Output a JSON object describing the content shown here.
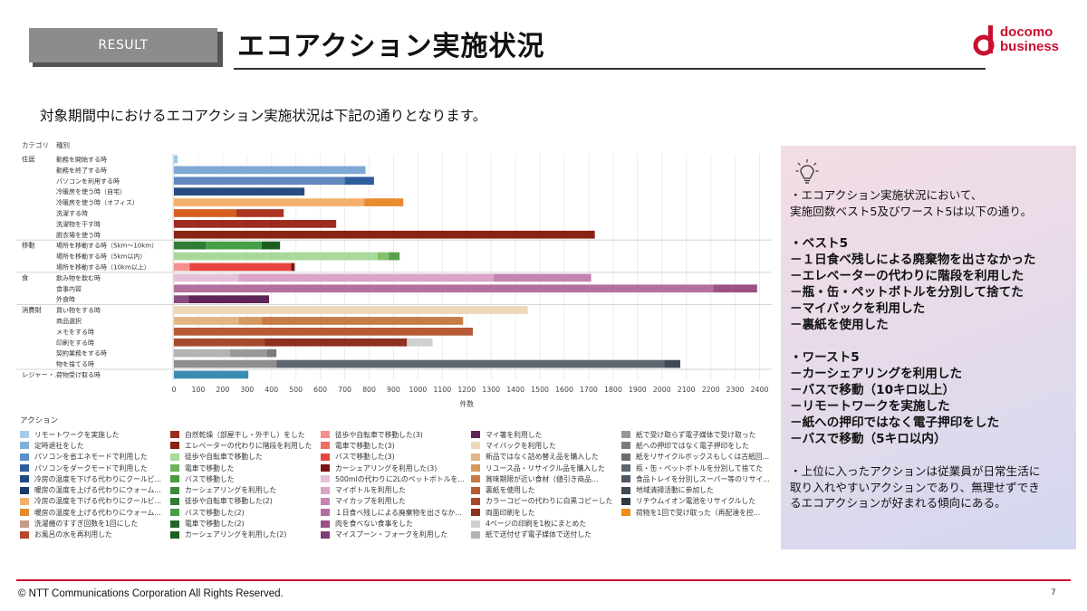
{
  "header": {
    "tab_label": "RESULT",
    "title": "エコアクション実施状況",
    "logo_line1": "docomo",
    "logo_line2": "business"
  },
  "subtitle": "対象期間中におけるエコアクション実施状況は下記の通りとなります。",
  "chart_data": {
    "type": "bar",
    "orientation": "horizontal",
    "stacked": true,
    "column_headers": [
      "カテゴリ",
      "種別"
    ],
    "xlabel": "件数",
    "xlim": [
      0,
      2450
    ],
    "xticks": [
      0,
      100,
      200,
      300,
      400,
      500,
      600,
      700,
      800,
      900,
      1000,
      1100,
      1200,
      1300,
      1400,
      1500,
      1600,
      1700,
      1800,
      1900,
      2000,
      2100,
      2200,
      2300,
      2400
    ],
    "groups": [
      {
        "label": "住居",
        "rows": [
          {
            "label": "勤務を開始する時",
            "segments": [
              {
                "color": "#9ecae1",
                "value": 15
              }
            ]
          },
          {
            "label": "勤務を終了する時",
            "segments": [
              {
                "color": "#7fa8d6",
                "value": 785
              }
            ]
          },
          {
            "label": "パソコンを利用する時",
            "segments": [
              {
                "color": "#5f88bd",
                "value": 700
              },
              {
                "color": "#2f5e9c",
                "value": 120
              }
            ]
          },
          {
            "label": "冷暖房を使う時（自宅）",
            "segments": [
              {
                "color": "#274c84",
                "value": 535
              }
            ]
          },
          {
            "label": "冷暖房を使う時（オフィス）",
            "segments": [
              {
                "color": "#f4b06b",
                "value": 780
              },
              {
                "color": "#e88a2d",
                "value": 160
              }
            ]
          },
          {
            "label": "洗濯する時",
            "segments": [
              {
                "color": "#d75f1e",
                "value": 255
              },
              {
                "color": "#ad3622",
                "value": 195
              }
            ]
          },
          {
            "label": "洗濯物を干す時",
            "segments": [
              {
                "color": "#9e2b1f",
                "value": 665
              }
            ]
          },
          {
            "label": "脱衣場を使う時",
            "segments": [
              {
                "color": "#8a2314",
                "value": 1725
              }
            ]
          }
        ]
      },
      {
        "label": "移動",
        "rows": [
          {
            "label": "場所を移動する時（5km～10km）",
            "segments": [
              {
                "color": "#2e7d32",
                "value": 130
              },
              {
                "color": "#43a047",
                "value": 230
              },
              {
                "color": "#1b5e20",
                "value": 75
              }
            ]
          },
          {
            "label": "場所を移動する時（5km以内）",
            "segments": [
              {
                "color": "#a8d99a",
                "value": 835
              },
              {
                "color": "#86c06f",
                "value": 45
              },
              {
                "color": "#5aa04d",
                "value": 45
              }
            ]
          },
          {
            "label": "場所を移動する時（10km以上）",
            "segments": [
              {
                "color": "#f7908d",
                "value": 65
              },
              {
                "color": "#e8443f",
                "value": 415
              },
              {
                "color": "#7a1212",
                "value": 15
              }
            ]
          }
        ]
      },
      {
        "label": "食",
        "rows": [
          {
            "label": "飲み物を飲む時",
            "segments": [
              {
                "color": "#e6c0d8",
                "value": 265
              },
              {
                "color": "#d9a4c6",
                "value": 1045
              },
              {
                "color": "#c583b4",
                "value": 400
              }
            ]
          },
          {
            "label": "食事内容",
            "segments": [
              {
                "color": "#b46f9f",
                "value": 2210
              },
              {
                "color": "#9a5186",
                "value": 180
              }
            ]
          },
          {
            "label": "外食時",
            "segments": [
              {
                "color": "#8a4a7f",
                "value": 60
              },
              {
                "color": "#5f2456",
                "value": 330
              }
            ]
          }
        ]
      },
      {
        "label": "消費財",
        "rows": [
          {
            "label": "買い物をする時",
            "segments": [
              {
                "color": "#ecd7b8",
                "value": 1450
              }
            ]
          },
          {
            "label": "商品選択",
            "segments": [
              {
                "color": "#e2b584",
                "value": 265
              },
              {
                "color": "#d49a60",
                "value": 95
              },
              {
                "color": "#c77b45",
                "value": 825
              }
            ]
          },
          {
            "label": "メモをする時",
            "segments": [
              {
                "color": "#b75a35",
                "value": 1225
              }
            ]
          },
          {
            "label": "印刷をする時",
            "segments": [
              {
                "color": "#a44a2c",
                "value": 370
              },
              {
                "color": "#8e2f20",
                "value": 585
              },
              {
                "color": "#d0d0d0",
                "value": 105
              }
            ]
          },
          {
            "label": "契約業務をする時",
            "segments": [
              {
                "color": "#b3b3b3",
                "value": 230
              },
              {
                "color": "#999999",
                "value": 150
              },
              {
                "color": "#7c7c7c",
                "value": 40
              }
            ]
          },
          {
            "label": "物を捨てる時",
            "segments": [
              {
                "color": "#8e8e8e",
                "value": 420
              },
              {
                "color": "#5e6770",
                "value": 1590
              },
              {
                "color": "#3f4a55",
                "value": 65
              }
            ]
          }
        ]
      },
      {
        "label": "レジャー・...",
        "rows": [
          {
            "label": "荷物受け取る時",
            "segments": [
              {
                "color": "#3a8db0",
                "value": 305
              }
            ]
          }
        ]
      }
    ],
    "legend_title": "アクション",
    "legend": [
      {
        "label": "リモートワークを実施した",
        "color": "#a6cde8"
      },
      {
        "label": "定時退社をした",
        "color": "#7fb0dc"
      },
      {
        "label": "パソコンを省エネモードで利用した",
        "color": "#5a8fcb"
      },
      {
        "label": "パソコンをダークモードで利用した",
        "color": "#2e5d9c"
      },
      {
        "label": "冷房の温度を下げる代わりにクールビ...",
        "color": "#224a7f"
      },
      {
        "label": "暖房の温度を上げる代わりにウォーム...",
        "color": "#1a3a6a"
      },
      {
        "label": "冷房の温度を下げる代わりにクールビ...",
        "color": "#f4b06b"
      },
      {
        "label": "暖房の温度を上げる代わりにウォーム...",
        "color": "#e88a2d"
      },
      {
        "label": "洗濯機のすすぎ回数を1回にした",
        "color": "#c49a84"
      },
      {
        "label": "お風呂の水を再利用した",
        "color": "#b5482a"
      },
      {
        "label": "自然乾燥（部屋干し・外干し）をした",
        "color": "#9e2b1f"
      },
      {
        "label": "エレベーターの代わりに階段を利用した",
        "color": "#8a2314"
      },
      {
        "label": "徒歩や自転車で移動した",
        "color": "#a8d99a"
      },
      {
        "label": "電車で移動した",
        "color": "#6cb35a"
      },
      {
        "label": "バスで移動した",
        "color": "#4c9a3f"
      },
      {
        "label": "カーシェアリングを利用した",
        "color": "#3a8a3a"
      },
      {
        "label": "徒歩や自転車で移動した(2)",
        "color": "#2e7d32"
      },
      {
        "label": "バスで移動した(2)",
        "color": "#43a047"
      },
      {
        "label": "電車で移動した(2)",
        "color": "#25662a"
      },
      {
        "label": "カーシェアリングを利用した(2)",
        "color": "#1b5e20"
      },
      {
        "label": "徒歩や自転車で移動した(3)",
        "color": "#f7908d"
      },
      {
        "label": "電車で移動した(3)",
        "color": "#ef6b63"
      },
      {
        "label": "バスで移動した(3)",
        "color": "#e8443f"
      },
      {
        "label": "カーシェアリングを利用した(3)",
        "color": "#7a1212"
      },
      {
        "label": "500mlの代わりに2Lのペットボトルを...",
        "color": "#e6c0d8"
      },
      {
        "label": "マイボトルを利用した",
        "color": "#d9a4c6"
      },
      {
        "label": "マイカップを利用した",
        "color": "#c583b4"
      },
      {
        "label": "１日食べ残しによる廃棄物を出さなか...",
        "color": "#b46f9f"
      },
      {
        "label": "肉を食べない食事をした",
        "color": "#9a5186"
      },
      {
        "label": "マイスプーン・フォークを利用した",
        "color": "#7d3c73"
      },
      {
        "label": "マイ箸を利用した",
        "color": "#5f2456"
      },
      {
        "label": "マイバックを利用した",
        "color": "#ecd7b8"
      },
      {
        "label": "新品ではなく詰め替え品を購入した",
        "color": "#e2b584"
      },
      {
        "label": "リユース品・リサイクル品を購入した",
        "color": "#d49a60"
      },
      {
        "label": "賞味期限が近い食材（値引き商品...",
        "color": "#c77b45"
      },
      {
        "label": "裏紙を使用した",
        "color": "#b75a35"
      },
      {
        "label": "カラーコピーの代わりに白黒コピーした",
        "color": "#a44a2c"
      },
      {
        "label": "両面印刷をした",
        "color": "#8e2f20"
      },
      {
        "label": "4ページの印刷を1枚にまとめた",
        "color": "#d0d0d0"
      },
      {
        "label": "紙で送付せず電子媒体で送付した",
        "color": "#b3b3b3"
      },
      {
        "label": "紙で受け取らず電子媒体で受け取った",
        "color": "#999999"
      },
      {
        "label": "紙への押印ではなく電子押印をした",
        "color": "#7c7c7c"
      },
      {
        "label": "紙をリサイクルボックスもしくは古紙回...",
        "color": "#6d6d6d"
      },
      {
        "label": "瓶・缶・ペットボトルを分別して捨てた",
        "color": "#5e6770"
      },
      {
        "label": "食品トレイを分別しスーパー等のリサイ...",
        "color": "#4e5862"
      },
      {
        "label": "地域清掃活動に参加した",
        "color": "#3f4a55"
      },
      {
        "label": "リチウムイオン電池をリサイクルした",
        "color": "#2f3945"
      },
      {
        "label": "荷物を1回で受け取った（再配達を控...",
        "color": "#f08c1e"
      }
    ]
  },
  "note": {
    "intro_line1": "・エコアクション実施状況において、",
    "intro_line2": "実施回数ベスト5及びワースト5は以下の通り。",
    "best_title": "・ベスト5",
    "best_items": [
      "－１日食べ残しによる廃棄物を出さなかった",
      "－エレベーターの代わりに階段を利用した",
      "－瓶・缶・ペットボトルを分別して捨てた",
      "－マイバックを利用した",
      "－裏紙を使用した"
    ],
    "worst_title": "・ワースト5",
    "worst_items": [
      "－カーシェアリングを利用した",
      "－バスで移動（10キロ以上）",
      "－リモートワークを実施した",
      "－紙への押印ではなく電子押印をした",
      "－バスで移動（5キロ以内）"
    ],
    "summary_line1": "・上位に入ったアクションは従業員が日常生活に",
    "summary_line2": "取り入れやすいアクションであり、無理せずでき",
    "summary_line3": "るエコアクションが好まれる傾向にある。"
  },
  "footer": {
    "copyright": "© NTT Communications Corporation All Rights Reserved.",
    "page_number": "7"
  }
}
